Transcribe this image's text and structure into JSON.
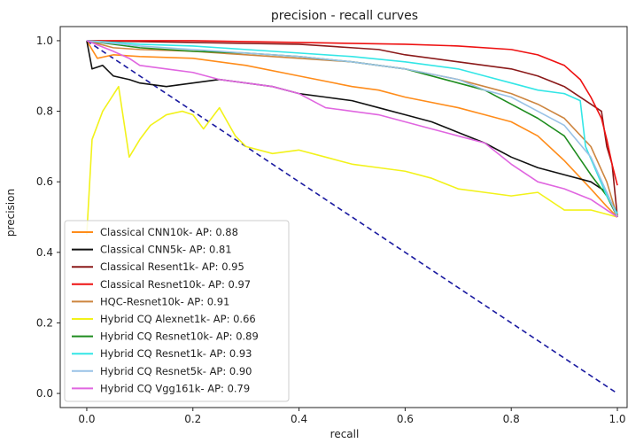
{
  "chart_data": {
    "type": "line",
    "title": "precision - recall curves",
    "xlabel": "recall",
    "ylabel": "precision",
    "xlim": [
      -0.05,
      1.02
    ],
    "ylim": [
      -0.04,
      1.04
    ],
    "xticks": [
      0.0,
      0.2,
      0.4,
      0.6,
      0.8,
      1.0
    ],
    "yticks": [
      0.0,
      0.2,
      0.4,
      0.6,
      0.8,
      1.0
    ],
    "grid": false,
    "legend_position": "lower-left",
    "series": [
      {
        "name": "Classical CNN10k- AP: 0.88",
        "color": "#ff8c1a",
        "points": [
          [
            0.0,
            1.0
          ],
          [
            0.02,
            0.95
          ],
          [
            0.05,
            0.96
          ],
          [
            0.1,
            0.955
          ],
          [
            0.2,
            0.95
          ],
          [
            0.3,
            0.93
          ],
          [
            0.4,
            0.9
          ],
          [
            0.5,
            0.87
          ],
          [
            0.55,
            0.86
          ],
          [
            0.6,
            0.84
          ],
          [
            0.7,
            0.81
          ],
          [
            0.75,
            0.79
          ],
          [
            0.8,
            0.77
          ],
          [
            0.85,
            0.73
          ],
          [
            0.9,
            0.66
          ],
          [
            0.95,
            0.58
          ],
          [
            0.98,
            0.53
          ],
          [
            1.0,
            0.5
          ]
        ]
      },
      {
        "name": "Classical CNN5k- AP: 0.81",
        "color": "#111111",
        "points": [
          [
            0.0,
            1.0
          ],
          [
            0.01,
            0.92
          ],
          [
            0.03,
            0.93
          ],
          [
            0.05,
            0.9
          ],
          [
            0.08,
            0.89
          ],
          [
            0.1,
            0.88
          ],
          [
            0.15,
            0.87
          ],
          [
            0.2,
            0.88
          ],
          [
            0.25,
            0.89
          ],
          [
            0.3,
            0.88
          ],
          [
            0.35,
            0.87
          ],
          [
            0.4,
            0.85
          ],
          [
            0.45,
            0.84
          ],
          [
            0.5,
            0.83
          ],
          [
            0.55,
            0.81
          ],
          [
            0.6,
            0.79
          ],
          [
            0.65,
            0.77
          ],
          [
            0.7,
            0.74
          ],
          [
            0.75,
            0.71
          ],
          [
            0.8,
            0.67
          ],
          [
            0.85,
            0.64
          ],
          [
            0.9,
            0.62
          ],
          [
            0.95,
            0.6
          ],
          [
            0.98,
            0.57
          ],
          [
            1.0,
            0.5
          ]
        ]
      },
      {
        "name": "Classical Resent1k- AP: 0.95",
        "color": "#8b1a1a",
        "points": [
          [
            0.0,
            1.0
          ],
          [
            0.2,
            0.995
          ],
          [
            0.4,
            0.99
          ],
          [
            0.5,
            0.98
          ],
          [
            0.55,
            0.975
          ],
          [
            0.6,
            0.96
          ],
          [
            0.7,
            0.94
          ],
          [
            0.75,
            0.93
          ],
          [
            0.8,
            0.92
          ],
          [
            0.85,
            0.9
          ],
          [
            0.9,
            0.87
          ],
          [
            0.95,
            0.82
          ],
          [
            0.97,
            0.8
          ],
          [
            0.98,
            0.7
          ],
          [
            0.99,
            0.65
          ],
          [
            1.0,
            0.5
          ]
        ]
      },
      {
        "name": "Classical Resnet10k- AP: 0.97",
        "color": "#ee1111",
        "points": [
          [
            0.0,
            1.0
          ],
          [
            0.2,
            1.0
          ],
          [
            0.4,
            0.995
          ],
          [
            0.6,
            0.99
          ],
          [
            0.7,
            0.985
          ],
          [
            0.8,
            0.975
          ],
          [
            0.85,
            0.96
          ],
          [
            0.9,
            0.93
          ],
          [
            0.93,
            0.89
          ],
          [
            0.95,
            0.84
          ],
          [
            0.97,
            0.78
          ],
          [
            0.98,
            0.72
          ],
          [
            0.99,
            0.65
          ],
          [
            1.0,
            0.59
          ]
        ]
      },
      {
        "name": "HQC-Resnet10k- AP: 0.91",
        "color": "#cd853f",
        "points": [
          [
            0.0,
            1.0
          ],
          [
            0.05,
            0.98
          ],
          [
            0.1,
            0.975
          ],
          [
            0.2,
            0.97
          ],
          [
            0.3,
            0.96
          ],
          [
            0.4,
            0.95
          ],
          [
            0.5,
            0.94
          ],
          [
            0.6,
            0.92
          ],
          [
            0.7,
            0.89
          ],
          [
            0.75,
            0.87
          ],
          [
            0.8,
            0.85
          ],
          [
            0.85,
            0.82
          ],
          [
            0.9,
            0.78
          ],
          [
            0.95,
            0.7
          ],
          [
            0.98,
            0.6
          ],
          [
            1.0,
            0.5
          ]
        ]
      },
      {
        "name": "Hybrid CQ Alexnet1k- AP: 0.66",
        "color": "#f2f21a",
        "points": [
          [
            0.0,
            0.45
          ],
          [
            0.01,
            0.72
          ],
          [
            0.03,
            0.8
          ],
          [
            0.06,
            0.87
          ],
          [
            0.08,
            0.67
          ],
          [
            0.1,
            0.72
          ],
          [
            0.12,
            0.76
          ],
          [
            0.15,
            0.79
          ],
          [
            0.18,
            0.8
          ],
          [
            0.2,
            0.79
          ],
          [
            0.22,
            0.75
          ],
          [
            0.25,
            0.81
          ],
          [
            0.28,
            0.73
          ],
          [
            0.3,
            0.7
          ],
          [
            0.35,
            0.68
          ],
          [
            0.4,
            0.69
          ],
          [
            0.45,
            0.67
          ],
          [
            0.5,
            0.65
          ],
          [
            0.55,
            0.64
          ],
          [
            0.6,
            0.63
          ],
          [
            0.65,
            0.61
          ],
          [
            0.7,
            0.58
          ],
          [
            0.75,
            0.57
          ],
          [
            0.8,
            0.56
          ],
          [
            0.85,
            0.57
          ],
          [
            0.9,
            0.52
          ],
          [
            0.95,
            0.52
          ],
          [
            1.0,
            0.5
          ]
        ]
      },
      {
        "name": "Hybrid CQ Resnet10k- AP: 0.89",
        "color": "#1e8c1e",
        "points": [
          [
            0.0,
            1.0
          ],
          [
            0.1,
            0.98
          ],
          [
            0.2,
            0.97
          ],
          [
            0.3,
            0.965
          ],
          [
            0.4,
            0.955
          ],
          [
            0.5,
            0.94
          ],
          [
            0.6,
            0.92
          ],
          [
            0.7,
            0.88
          ],
          [
            0.75,
            0.86
          ],
          [
            0.8,
            0.82
          ],
          [
            0.85,
            0.78
          ],
          [
            0.9,
            0.73
          ],
          [
            0.95,
            0.62
          ],
          [
            0.98,
            0.56
          ],
          [
            1.0,
            0.5
          ]
        ]
      },
      {
        "name": "Hybrid CQ Resnet1k- AP: 0.93",
        "color": "#33e6e6",
        "points": [
          [
            0.0,
            1.0
          ],
          [
            0.1,
            0.99
          ],
          [
            0.2,
            0.985
          ],
          [
            0.3,
            0.975
          ],
          [
            0.4,
            0.965
          ],
          [
            0.5,
            0.955
          ],
          [
            0.6,
            0.94
          ],
          [
            0.7,
            0.92
          ],
          [
            0.75,
            0.9
          ],
          [
            0.8,
            0.88
          ],
          [
            0.85,
            0.86
          ],
          [
            0.9,
            0.85
          ],
          [
            0.93,
            0.83
          ],
          [
            0.94,
            0.7
          ],
          [
            0.96,
            0.63
          ],
          [
            0.98,
            0.56
          ],
          [
            1.0,
            0.51
          ]
        ]
      },
      {
        "name": "Hybrid CQ Resnet5k- AP: 0.90",
        "color": "#99c2e6",
        "points": [
          [
            0.0,
            1.0
          ],
          [
            0.1,
            0.985
          ],
          [
            0.2,
            0.975
          ],
          [
            0.3,
            0.965
          ],
          [
            0.4,
            0.955
          ],
          [
            0.5,
            0.94
          ],
          [
            0.6,
            0.92
          ],
          [
            0.7,
            0.89
          ],
          [
            0.75,
            0.86
          ],
          [
            0.8,
            0.84
          ],
          [
            0.85,
            0.8
          ],
          [
            0.9,
            0.76
          ],
          [
            0.95,
            0.67
          ],
          [
            0.98,
            0.57
          ],
          [
            1.0,
            0.5
          ]
        ]
      },
      {
        "name": "Hybrid CQ Vgg161k- AP: 0.79",
        "color": "#e066e0",
        "points": [
          [
            0.0,
            1.0
          ],
          [
            0.05,
            0.97
          ],
          [
            0.08,
            0.95
          ],
          [
            0.1,
            0.93
          ],
          [
            0.15,
            0.92
          ],
          [
            0.2,
            0.91
          ],
          [
            0.25,
            0.89
          ],
          [
            0.3,
            0.88
          ],
          [
            0.35,
            0.87
          ],
          [
            0.4,
            0.85
          ],
          [
            0.45,
            0.81
          ],
          [
            0.5,
            0.8
          ],
          [
            0.55,
            0.79
          ],
          [
            0.6,
            0.77
          ],
          [
            0.65,
            0.75
          ],
          [
            0.7,
            0.73
          ],
          [
            0.75,
            0.71
          ],
          [
            0.8,
            0.65
          ],
          [
            0.85,
            0.6
          ],
          [
            0.9,
            0.58
          ],
          [
            0.95,
            0.55
          ],
          [
            0.98,
            0.52
          ],
          [
            1.0,
            0.5
          ]
        ]
      }
    ],
    "reference_line": {
      "color": "#1a1aa0",
      "style": "dashed",
      "points": [
        [
          0.0,
          1.0
        ],
        [
          1.0,
          0.0
        ]
      ]
    }
  }
}
